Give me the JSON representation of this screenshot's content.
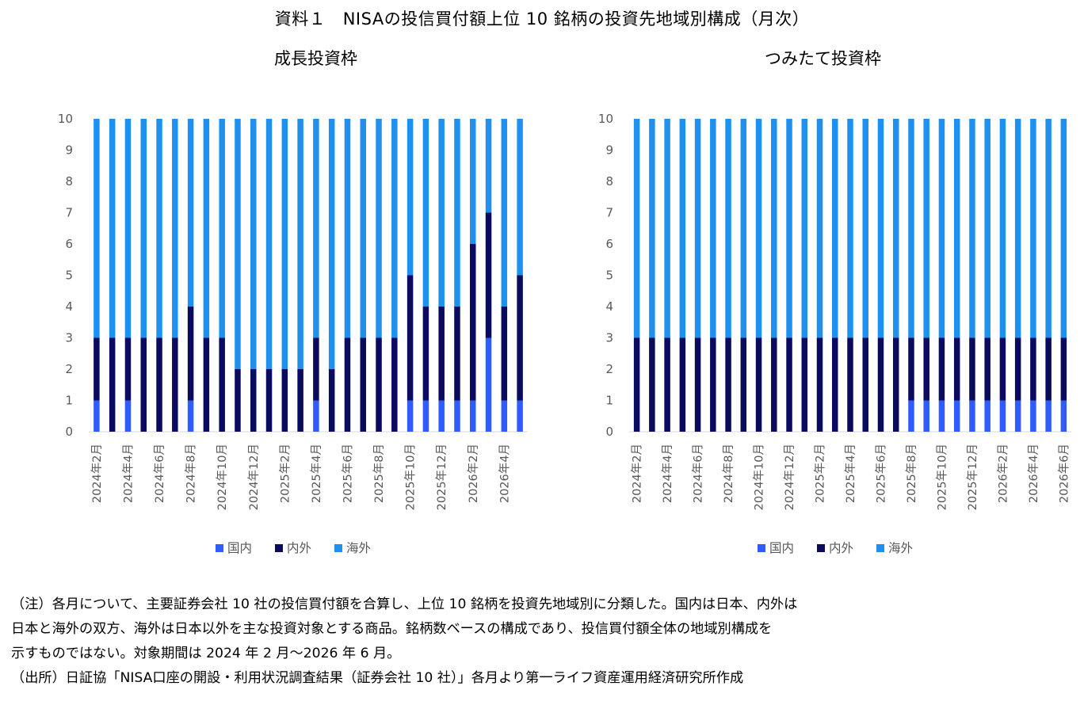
{
  "title": "資料１　NISAの投信買付額上位 10 銘柄の投資先地域別構成（月次）",
  "colors": {
    "domestic": "#2F5BFF",
    "mixed": "#0A0A5E",
    "overseas": "#1E90F0",
    "axis_text": "#595959",
    "gridline": "#D9D9D9"
  },
  "chart_data": [
    {
      "type": "bar",
      "stacked": true,
      "title": "成長投資枠",
      "categories": [
        "2024年2月",
        "2024年3月",
        "2024年4月",
        "2024年5月",
        "2024年6月",
        "2024年7月",
        "2024年8月",
        "2024年9月",
        "2024年10月",
        "2024年11月",
        "2024年12月",
        "2025年1月",
        "2025年2月",
        "2025年3月",
        "2025年4月",
        "2025年5月",
        "2025年6月",
        "2025年7月",
        "2025年8月",
        "2025年9月",
        "2025年10月",
        "2025年11月",
        "2025年12月",
        "2026年1月",
        "2026年2月",
        "2026年3月",
        "2026年4月",
        "2026年5月"
      ],
      "x_tick_labels": [
        "2024年2月",
        "2024年4月",
        "2024年6月",
        "2024年8月",
        "2024年10月",
        "2024年12月",
        "2025年2月",
        "2025年4月",
        "2025年6月",
        "2025年8月",
        "2025年10月",
        "2025年12月",
        "2026年2月",
        "2026年4月"
      ],
      "series": [
        {
          "name": "国内",
          "values": [
            1,
            0,
            1,
            0,
            0,
            0,
            1,
            0,
            0,
            0,
            0,
            0,
            0,
            0,
            1,
            0,
            0,
            0,
            0,
            0,
            1,
            1,
            1,
            1,
            1,
            3,
            1,
            1
          ]
        },
        {
          "name": "内外",
          "values": [
            2,
            3,
            2,
            3,
            3,
            3,
            3,
            3,
            3,
            2,
            2,
            2,
            2,
            2,
            2,
            2,
            3,
            3,
            3,
            3,
            4,
            3,
            3,
            3,
            5,
            4,
            3,
            4
          ]
        },
        {
          "name": "海外",
          "values": [
            7,
            7,
            7,
            7,
            7,
            7,
            6,
            7,
            7,
            8,
            8,
            8,
            8,
            8,
            7,
            8,
            7,
            7,
            7,
            7,
            5,
            6,
            6,
            6,
            4,
            3,
            6,
            5
          ]
        }
      ],
      "ylim": [
        0,
        10
      ],
      "yticks": [
        0,
        1,
        2,
        3,
        4,
        5,
        6,
        7,
        8,
        9,
        10
      ],
      "legend_position": "bottom"
    },
    {
      "type": "bar",
      "stacked": true,
      "title": "つみたて投資枠",
      "categories": [
        "2024年2月",
        "2024年3月",
        "2024年4月",
        "2024年5月",
        "2024年6月",
        "2024年7月",
        "2024年8月",
        "2024年9月",
        "2024年10月",
        "2024年11月",
        "2024年12月",
        "2025年1月",
        "2025年2月",
        "2025年3月",
        "2025年4月",
        "2025年5月",
        "2025年6月",
        "2025年7月",
        "2025年8月",
        "2025年9月",
        "2025年10月",
        "2025年11月",
        "2025年12月",
        "2026年1月",
        "2026年2月",
        "2026年3月",
        "2026年4月",
        "2026年5月",
        "2026年6月"
      ],
      "x_tick_labels": [
        "2024年2月",
        "2024年4月",
        "2024年6月",
        "2024年8月",
        "2024年10月",
        "2024年12月",
        "2025年2月",
        "2025年4月",
        "2025年6月",
        "2025年8月",
        "2025年10月",
        "2025年12月",
        "2026年2月",
        "2026年4月",
        "2026年6月"
      ],
      "series": [
        {
          "name": "国内",
          "values": [
            0,
            0,
            0,
            0,
            0,
            0,
            0,
            0,
            0,
            0,
            0,
            0,
            0,
            0,
            0,
            0,
            0,
            0,
            1,
            1,
            1,
            1,
            1,
            1,
            1,
            1,
            1,
            1,
            1
          ]
        },
        {
          "name": "内外",
          "values": [
            3,
            3,
            3,
            3,
            3,
            3,
            3,
            3,
            3,
            3,
            3,
            3,
            3,
            3,
            3,
            3,
            3,
            3,
            2,
            2,
            2,
            2,
            2,
            2,
            2,
            2,
            2,
            2,
            2
          ]
        },
        {
          "name": "海外",
          "values": [
            7,
            7,
            7,
            7,
            7,
            7,
            7,
            7,
            7,
            7,
            7,
            7,
            7,
            7,
            7,
            7,
            7,
            7,
            7,
            7,
            7,
            7,
            7,
            7,
            7,
            7,
            7,
            7,
            7
          ]
        }
      ],
      "ylim": [
        0,
        10
      ],
      "yticks": [
        0,
        1,
        2,
        3,
        4,
        5,
        6,
        7,
        8,
        9,
        10
      ],
      "legend_position": "bottom"
    }
  ],
  "notes": [
    "（注）各月について、主要証券会社 10 社の投信買付額を合算し、上位 10 銘柄を投資先地域別に分類した。国内は日本、内外は",
    "日本と海外の双方、海外は日本以外を主な投資対象とする商品。銘柄数ベースの構成であり、投信買付額全体の地域別構成を",
    "示すものではない。対象期間は 2024 年 2 月～2026 年 6 月。",
    "（出所）日証協「NISA口座の開設・利用状況調査結果（証券会社 10 社）」各月より第一ライフ資産運用経済研究所作成"
  ]
}
